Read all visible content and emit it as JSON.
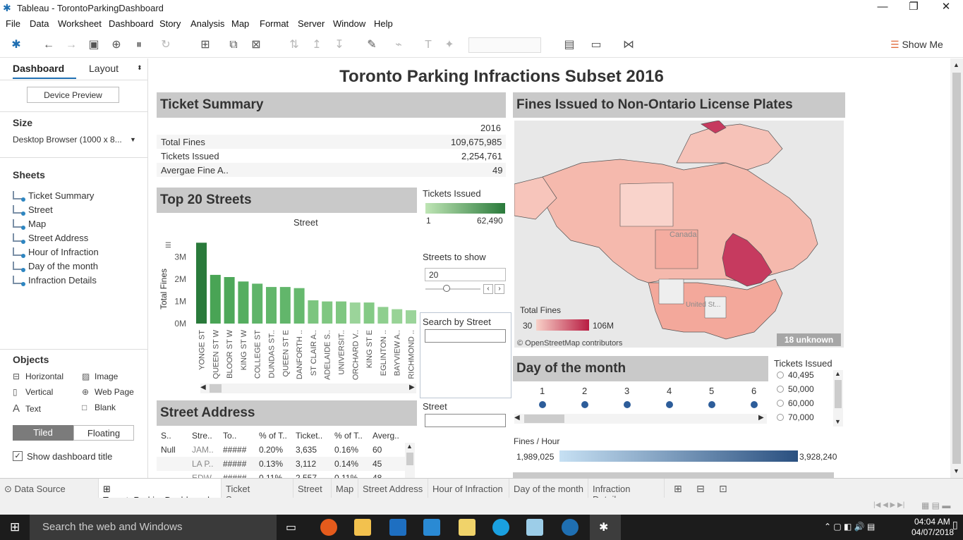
{
  "window": {
    "title": "Tableau - TorontoParkingDashboard",
    "minimize": "—",
    "restore": "❐",
    "close": "✕"
  },
  "menu": [
    "File",
    "Data",
    "Worksheet",
    "Dashboard",
    "Story",
    "Analysis",
    "Map",
    "Format",
    "Server",
    "Window",
    "Help"
  ],
  "toolbar": {
    "show_me": "Show Me"
  },
  "left": {
    "tab_dashboard": "Dashboard",
    "tab_layout": "Layout",
    "device_preview": "Device Preview",
    "size_label": "Size",
    "size_value": "Desktop Browser (1000 x 8...",
    "sheets_label": "Sheets",
    "sheets": [
      "Ticket Summary",
      "Street",
      "Map",
      "Street Address",
      "Hour of Infraction",
      "Day of the month",
      "Infraction Details"
    ],
    "objects_label": "Objects",
    "objects": [
      "Horizontal",
      "Image",
      "Vertical",
      "Web Page",
      "Text",
      "Blank"
    ],
    "tiled": "Tiled",
    "floating": "Floating",
    "show_title": "Show dashboard title"
  },
  "dashboard": {
    "title": "Toronto Parking Infractions Subset 2016",
    "ticket_summary": {
      "header": "Ticket Summary",
      "year": "2016",
      "rows": [
        {
          "label": "Total Fines",
          "value": "109,675,985"
        },
        {
          "label": "Tickets Issued",
          "value": "2,254,761"
        },
        {
          "label": "Avergae Fine A..",
          "value": "49"
        }
      ]
    },
    "top_streets": {
      "header": "Top 20 Streets",
      "col_label": "Street",
      "y_label": "Total Fines"
    },
    "tickets_legend": {
      "title": "Tickets Issued",
      "min": "1",
      "max": "62,490"
    },
    "streets_to_show": {
      "title": "Streets to show",
      "value": "20"
    },
    "search_by_street": {
      "title": "Search by Street"
    },
    "street_filter": {
      "title": "Street"
    },
    "street_address": {
      "header": "Street Address",
      "columns": [
        "S..",
        "Stre..",
        "To..",
        "% of T..",
        "Ticket..",
        "% of T..",
        "Averg.."
      ],
      "rows": [
        [
          "Null",
          "JAM..",
          "#####",
          "0.20%",
          "3,635",
          "0.16%",
          "60"
        ],
        [
          "",
          "LA P..",
          "#####",
          "0.13%",
          "3,112",
          "0.14%",
          "45"
        ],
        [
          "",
          "EDW..",
          "#####",
          "0.11%",
          "2,557",
          "0.11%",
          "48"
        ]
      ]
    },
    "map": {
      "header": "Fines Issued to Non-Ontario License Plates",
      "legend_title": "Total Fines",
      "legend_min": "30",
      "legend_max": "106M",
      "attribution": "© OpenStreetMap contributors",
      "unknown": "18 unknown",
      "label_canada": "Canada",
      "label_us": "United St..."
    },
    "day_of_month": {
      "header": "Day of the month",
      "days": [
        "1",
        "2",
        "3",
        "4",
        "5",
        "6"
      ]
    },
    "tickets_filter": {
      "title": "Tickets Issued",
      "options": [
        "40,495",
        "50,000",
        "60,000",
        "70,000"
      ]
    },
    "fines_hour": {
      "title": "Fines / Hour",
      "min": "1,989,025",
      "max": "3,928,240"
    }
  },
  "chart_data": {
    "type": "bar",
    "title": "Street",
    "ylabel": "Total Fines",
    "ylim": [
      0,
      3500000
    ],
    "yticks": [
      "0M",
      "1M",
      "2M",
      "3M"
    ],
    "categories": [
      "YONGE ST",
      "QUEEN ST W",
      "BLOOR ST W",
      "KING ST W",
      "COLLEGE ST",
      "DUNDAS ST..",
      "QUEEN ST E",
      "DANFORTH ..",
      "ST CLAIR A..",
      "ADELAIDE S..",
      "UNIVERSIT..",
      "ORCHARD V..",
      "KING ST E",
      "EGLINTON ..",
      "BAYVIEW A..",
      "RICHMOND .."
    ],
    "values": [
      3650000,
      2200000,
      2100000,
      1900000,
      1800000,
      1650000,
      1650000,
      1600000,
      1050000,
      1000000,
      1000000,
      950000,
      950000,
      750000,
      650000,
      600000
    ],
    "colors": [
      "#2a7a3b",
      "#49a455",
      "#4ea85a",
      "#55ae60",
      "#5fb469",
      "#62b66b",
      "#62b66b",
      "#66b96e",
      "#7cc57f",
      "#7fc781",
      "#7fc781",
      "#9bd49a",
      "#84ca85",
      "#8fcf8f",
      "#98d396",
      "#9bd49a"
    ]
  }
}
